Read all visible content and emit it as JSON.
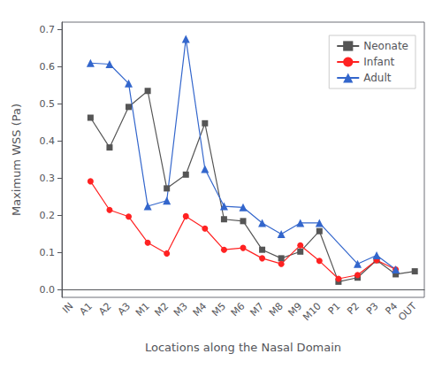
{
  "chart_data": {
    "type": "line",
    "xlabel": "Locations along the Nasal Domain",
    "ylabel": "Maximum WSS (Pa)",
    "categories": [
      "IN",
      "A1",
      "A2",
      "A3",
      "M1",
      "M2",
      "M3",
      "M4",
      "M5",
      "M6",
      "M7",
      "M8",
      "M9",
      "M10",
      "P1",
      "P2",
      "P3",
      "P4",
      "OUT"
    ],
    "series": [
      {
        "name": "Neonate",
        "color": "#555555",
        "marker": "square",
        "values": [
          null,
          0.463,
          0.383,
          0.492,
          0.535,
          0.273,
          0.31,
          0.448,
          0.19,
          0.185,
          0.108,
          0.085,
          0.103,
          0.158,
          0.022,
          0.033,
          0.08,
          0.042,
          0.05
        ]
      },
      {
        "name": "Infant",
        "color": "#ff2222",
        "marker": "circle",
        "values": [
          null,
          0.292,
          0.215,
          0.197,
          0.127,
          0.098,
          0.198,
          0.165,
          0.108,
          0.113,
          0.085,
          0.07,
          0.12,
          0.078,
          0.03,
          0.04,
          0.08,
          0.055,
          null
        ]
      },
      {
        "name": "Adult",
        "color": "#3366cc",
        "marker": "triangle",
        "values": [
          null,
          0.61,
          0.607,
          0.555,
          0.225,
          0.24,
          0.675,
          0.325,
          0.225,
          0.222,
          0.18,
          0.15,
          0.18,
          0.18,
          null,
          0.07,
          0.093,
          0.055,
          null
        ]
      }
    ],
    "ylim": [
      -0.02,
      0.72
    ],
    "yticks": [
      {
        "value": 0,
        "label": "0.0"
      },
      0.1,
      0.2,
      0.3,
      0.4,
      0.5,
      0.6,
      0.7
    ],
    "grid": false,
    "legend": "upper right"
  }
}
